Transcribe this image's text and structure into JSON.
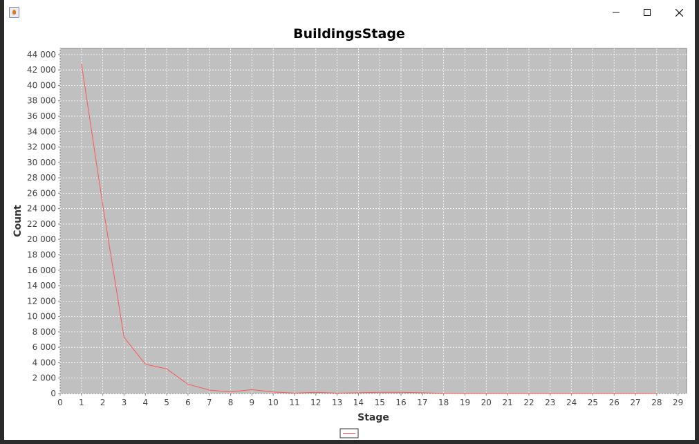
{
  "window": {
    "title": "",
    "controls": [
      "minimize-icon",
      "maximize-icon",
      "close-icon"
    ]
  },
  "chart_data": {
    "type": "line",
    "title": "BuildingsStage",
    "xlabel": "Stage",
    "ylabel": "Count",
    "xlim": [
      0,
      29.4
    ],
    "ylim": [
      0,
      44800
    ],
    "x_ticks": [
      0,
      1,
      2,
      3,
      4,
      5,
      6,
      7,
      8,
      9,
      10,
      11,
      12,
      13,
      14,
      15,
      16,
      17,
      18,
      19,
      20,
      21,
      22,
      23,
      24,
      25,
      26,
      27,
      28,
      29
    ],
    "y_ticks": [
      0,
      2000,
      4000,
      6000,
      8000,
      10000,
      12000,
      14000,
      16000,
      18000,
      20000,
      22000,
      24000,
      26000,
      28000,
      30000,
      32000,
      34000,
      36000,
      38000,
      40000,
      42000,
      44000
    ],
    "y_tick_labels": [
      "0",
      "2 000",
      "4 000",
      "6 000",
      "8 000",
      "10 000",
      "12 000",
      "14 000",
      "16 000",
      "18 000",
      "20 000",
      "22 000",
      "24 000",
      "26 000",
      "28 000",
      "30 000",
      "32 000",
      "34 000",
      "36 000",
      "38 000",
      "40 000",
      "42 000",
      "44 000"
    ],
    "grid": true,
    "background": "#c0c0c0",
    "legend_placement": "bottom-center",
    "series": [
      {
        "color": "#ff5555",
        "x": [
          1,
          2,
          3,
          4,
          5,
          6,
          7,
          8,
          9,
          10,
          11,
          12,
          13,
          14,
          15,
          16,
          17,
          18,
          19,
          20,
          21,
          22,
          23,
          24,
          25,
          26,
          27,
          28
        ],
        "values": [
          42800,
          24500,
          7300,
          3800,
          3200,
          1200,
          450,
          200,
          500,
          200,
          50,
          150,
          50,
          100,
          150,
          150,
          100,
          20,
          10,
          10,
          5,
          5,
          5,
          5,
          5,
          5,
          5,
          5
        ]
      }
    ]
  }
}
